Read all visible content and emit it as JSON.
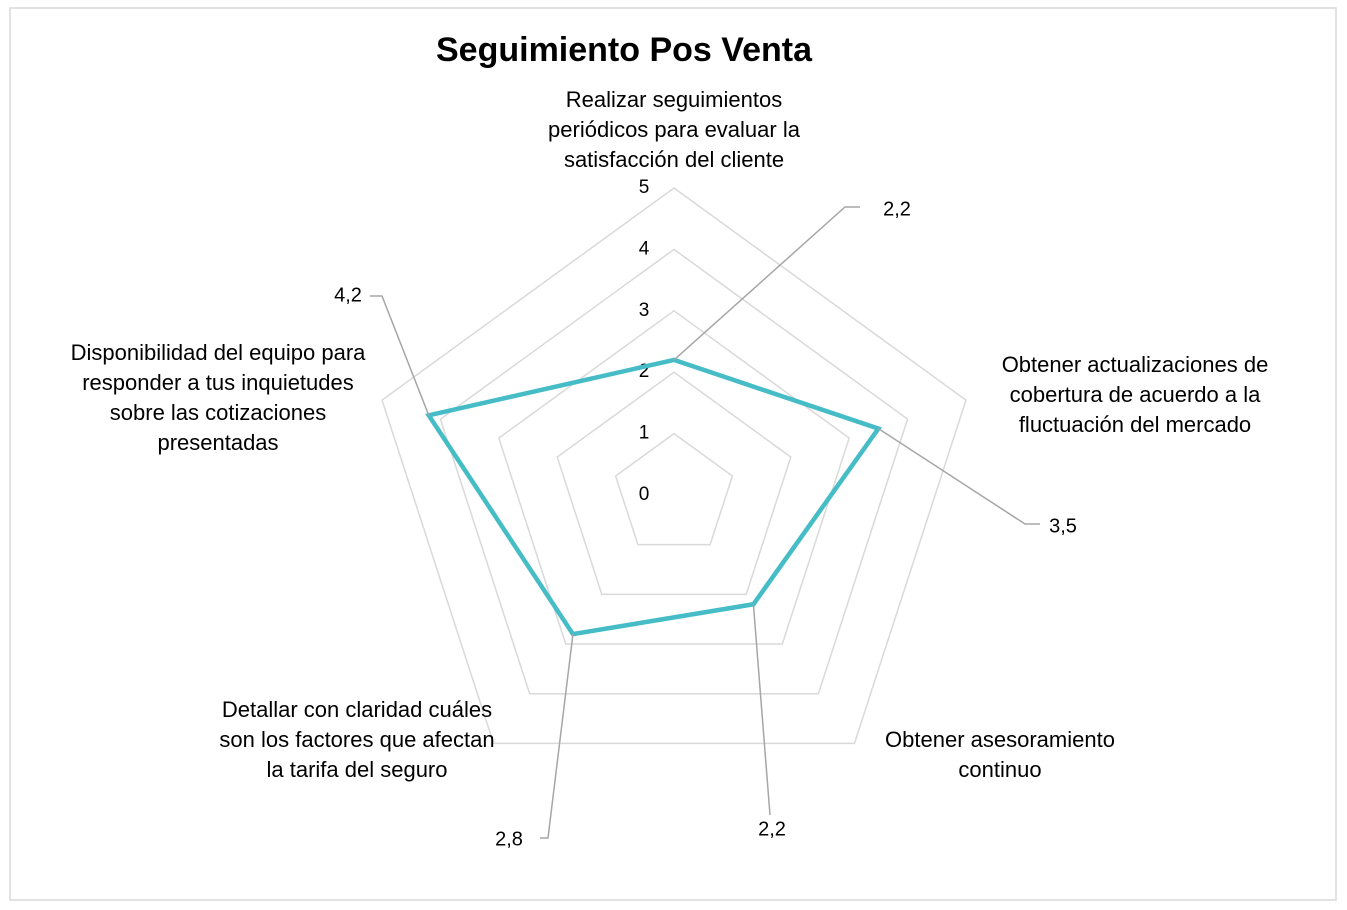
{
  "chart_data": {
    "type": "radar",
    "title": "Seguimiento Pos Venta",
    "categories": [
      "Realizar seguimientos periódicos para evaluar la satisfacción del cliente",
      "Obtener actualizaciones de cobertura de acuerdo a la fluctuación del mercado",
      "Obtener asesoramiento continuo",
      "Detallar con claridad cuáles son los factores que afectan la tarifa del seguro",
      "Disponibilidad del equipo para responder a tus inquietudes sobre las cotizaciones presentadas"
    ],
    "values": [
      2.2,
      3.5,
      2.2,
      2.8,
      4.2
    ],
    "value_labels": [
      "2,2",
      "3,5",
      "2,2",
      "2,8",
      "4,2"
    ],
    "color": "#45bcc6",
    "ylim": [
      0,
      5
    ],
    "yticks": [
      0,
      1,
      2,
      3,
      4,
      5
    ],
    "grid": true
  }
}
